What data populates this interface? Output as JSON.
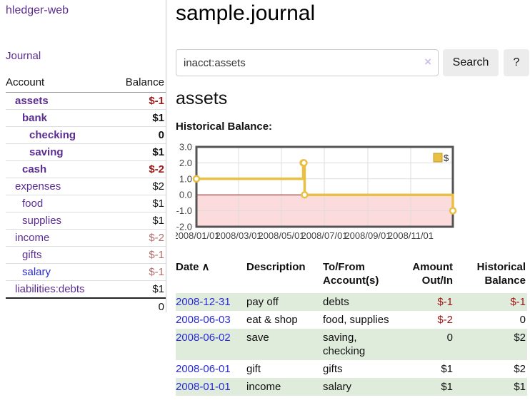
{
  "colors": {
    "purple": "#5b2d90",
    "blue": "#2a2ad6",
    "neg_strong": "#9e1616",
    "neg_soft": "#b26d6d",
    "row_green": "#dfecdb",
    "button_bg": "#ececec"
  },
  "app": {
    "title": "hledger-web"
  },
  "sidebar": {
    "nav": {
      "journal": "Journal"
    },
    "accounts": {
      "headers": {
        "account": "Account",
        "balance": "Balance"
      },
      "rows": [
        {
          "name": "assets",
          "balance": "$-1"
        },
        {
          "name": "bank",
          "balance": "$1"
        },
        {
          "name": "checking",
          "balance": "0"
        },
        {
          "name": "saving",
          "balance": "$1"
        },
        {
          "name": "cash",
          "balance": "$-2"
        },
        {
          "name": "expenses",
          "balance": "$2"
        },
        {
          "name": "food",
          "balance": "$1"
        },
        {
          "name": "supplies",
          "balance": "$1"
        },
        {
          "name": "income",
          "balance": "$-2"
        },
        {
          "name": "gifts",
          "balance": "$-1"
        },
        {
          "name": "salary",
          "balance": "$-1"
        },
        {
          "name": "liabilities:debts",
          "balance": "$1"
        }
      ],
      "total": "0"
    }
  },
  "main": {
    "title": "sample.journal",
    "search": {
      "value": "inacct:assets",
      "clear_icon": "×",
      "button_label": "Search",
      "help_label": "?"
    },
    "section_title": "assets",
    "chart_label": "Historical Balance:"
  },
  "chart_data": {
    "type": "line",
    "step": true,
    "title": "Historical Balance:",
    "x_range": [
      "2008-01-01",
      "2008-12-31"
    ],
    "ylim": [
      -2,
      3
    ],
    "y_ticks": [
      3,
      2,
      1,
      0,
      -1,
      -2
    ],
    "x_ticks": [
      "2008/01/01",
      "2008/03/01",
      "2008/05/01",
      "2008/07/01",
      "2008/09/01",
      "2008/11/01"
    ],
    "series": [
      {
        "name": "$",
        "color": "#e9c044",
        "points": [
          [
            "2008-01-01",
            1
          ],
          [
            "2008-06-01",
            2
          ],
          [
            "2008-06-02",
            2
          ],
          [
            "2008-06-03",
            0
          ],
          [
            "2008-12-31",
            -1
          ]
        ]
      }
    ],
    "legend": {
      "label": "$",
      "position": "top-right"
    },
    "colors": {
      "negative_region": "#fbdbdb",
      "zero_line": "#7c1c1c",
      "border": "#545454",
      "grid": "#dddddd"
    }
  },
  "transactions": {
    "sort_icon": "∧",
    "headers": {
      "date": "Date",
      "description": "Description",
      "account": "To/From Account(s)",
      "amount": "Amount Out/In",
      "balance": "Historical Balance"
    },
    "rows": [
      {
        "date": "2008-12-31",
        "description": "pay off",
        "accounts": "debts",
        "amount": "$-1",
        "balance": "$-1"
      },
      {
        "date": "2008-06-03",
        "description": "eat & shop",
        "accounts": "food, supplies",
        "amount": "$-2",
        "balance": "0"
      },
      {
        "date": "2008-06-02",
        "description": "save",
        "accounts": "saving, checking",
        "amount": "0",
        "balance": "$2"
      },
      {
        "date": "2008-06-01",
        "description": "gift",
        "accounts": "gifts",
        "amount": "$1",
        "balance": "$2"
      },
      {
        "date": "2008-01-01",
        "description": "income",
        "accounts": "salary",
        "amount": "$1",
        "balance": "$1"
      }
    ]
  }
}
